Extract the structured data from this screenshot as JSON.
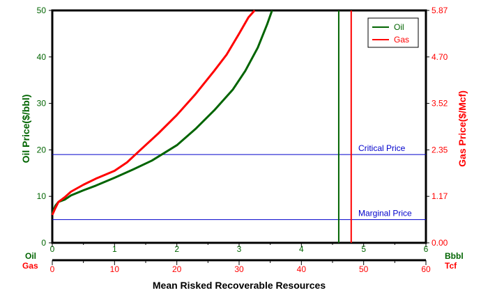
{
  "chart_data": {
    "type": "line",
    "xlabel": "Mean Risked Recoverable Resources",
    "ylabel_left": "Oil Price($/bbl)",
    "ylabel_right": "Gas Price($/Mcf)",
    "x_axis_oil": {
      "label": "Oil",
      "unit": "Bbbl",
      "range": [
        0,
        6
      ],
      "ticks": [
        "0",
        "1",
        "2",
        "3",
        "4",
        "5",
        "6"
      ]
    },
    "x_axis_gas": {
      "label": "Gas",
      "unit": "Tcf",
      "range": [
        0,
        60
      ],
      "ticks": [
        "0",
        "10",
        "20",
        "30",
        "40",
        "50",
        "60"
      ]
    },
    "y_left": {
      "range": [
        0,
        50
      ],
      "ticks": [
        "0",
        "10",
        "20",
        "30",
        "40",
        "50"
      ]
    },
    "y_right": {
      "range": [
        0,
        5.87
      ],
      "ticks": [
        "0.00",
        "1.17",
        "2.35",
        "3.52",
        "4.70",
        "5.87"
      ]
    },
    "series": [
      {
        "name": "Oil",
        "color": "#006400",
        "axis": "oil",
        "x": [
          0.0,
          0.05,
          0.1,
          0.2,
          0.3,
          0.5,
          0.7,
          1.0,
          1.3,
          1.6,
          2.0,
          2.3,
          2.6,
          2.9,
          3.1,
          3.3,
          3.45,
          3.53
        ],
        "y": [
          6.3,
          8.0,
          8.8,
          9.3,
          10.2,
          11.3,
          12.3,
          14.0,
          15.8,
          17.7,
          21.0,
          24.5,
          28.5,
          33.0,
          37.0,
          42.0,
          47.0,
          50.0
        ]
      },
      {
        "name": "Gas",
        "color": "#ff0000",
        "axis": "gas",
        "x": [
          0.0,
          0.5,
          1.0,
          2.0,
          3.0,
          5.0,
          7.0,
          10.0,
          12.0,
          14.0,
          17.0,
          20.0,
          23.0,
          26.0,
          28.0,
          30.0,
          31.5,
          32.5
        ],
        "y": [
          6.0,
          7.5,
          8.8,
          9.8,
          11.0,
          12.5,
          13.8,
          15.5,
          17.3,
          19.8,
          23.5,
          27.5,
          32.0,
          37.0,
          40.5,
          45.0,
          48.5,
          50.0
        ]
      }
    ],
    "hlines": [
      {
        "label": "Critical Price",
        "y": 19,
        "color": "#0000cc"
      },
      {
        "label": "Marginal Price",
        "y": 5,
        "color": "#0000cc"
      }
    ],
    "vlines": [
      {
        "series": "Oil",
        "x": 4.6,
        "axis": "oil",
        "color": "#006400"
      },
      {
        "series": "Gas",
        "x": 48,
        "axis": "gas",
        "color": "#ff0000"
      }
    ],
    "legend": {
      "position": "top-right",
      "items": [
        "Oil",
        "Gas"
      ]
    },
    "grid": false
  },
  "colors": {
    "oil": "#006400",
    "gas": "#ff0000",
    "reference": "#0000cc",
    "axis": "#000000"
  }
}
